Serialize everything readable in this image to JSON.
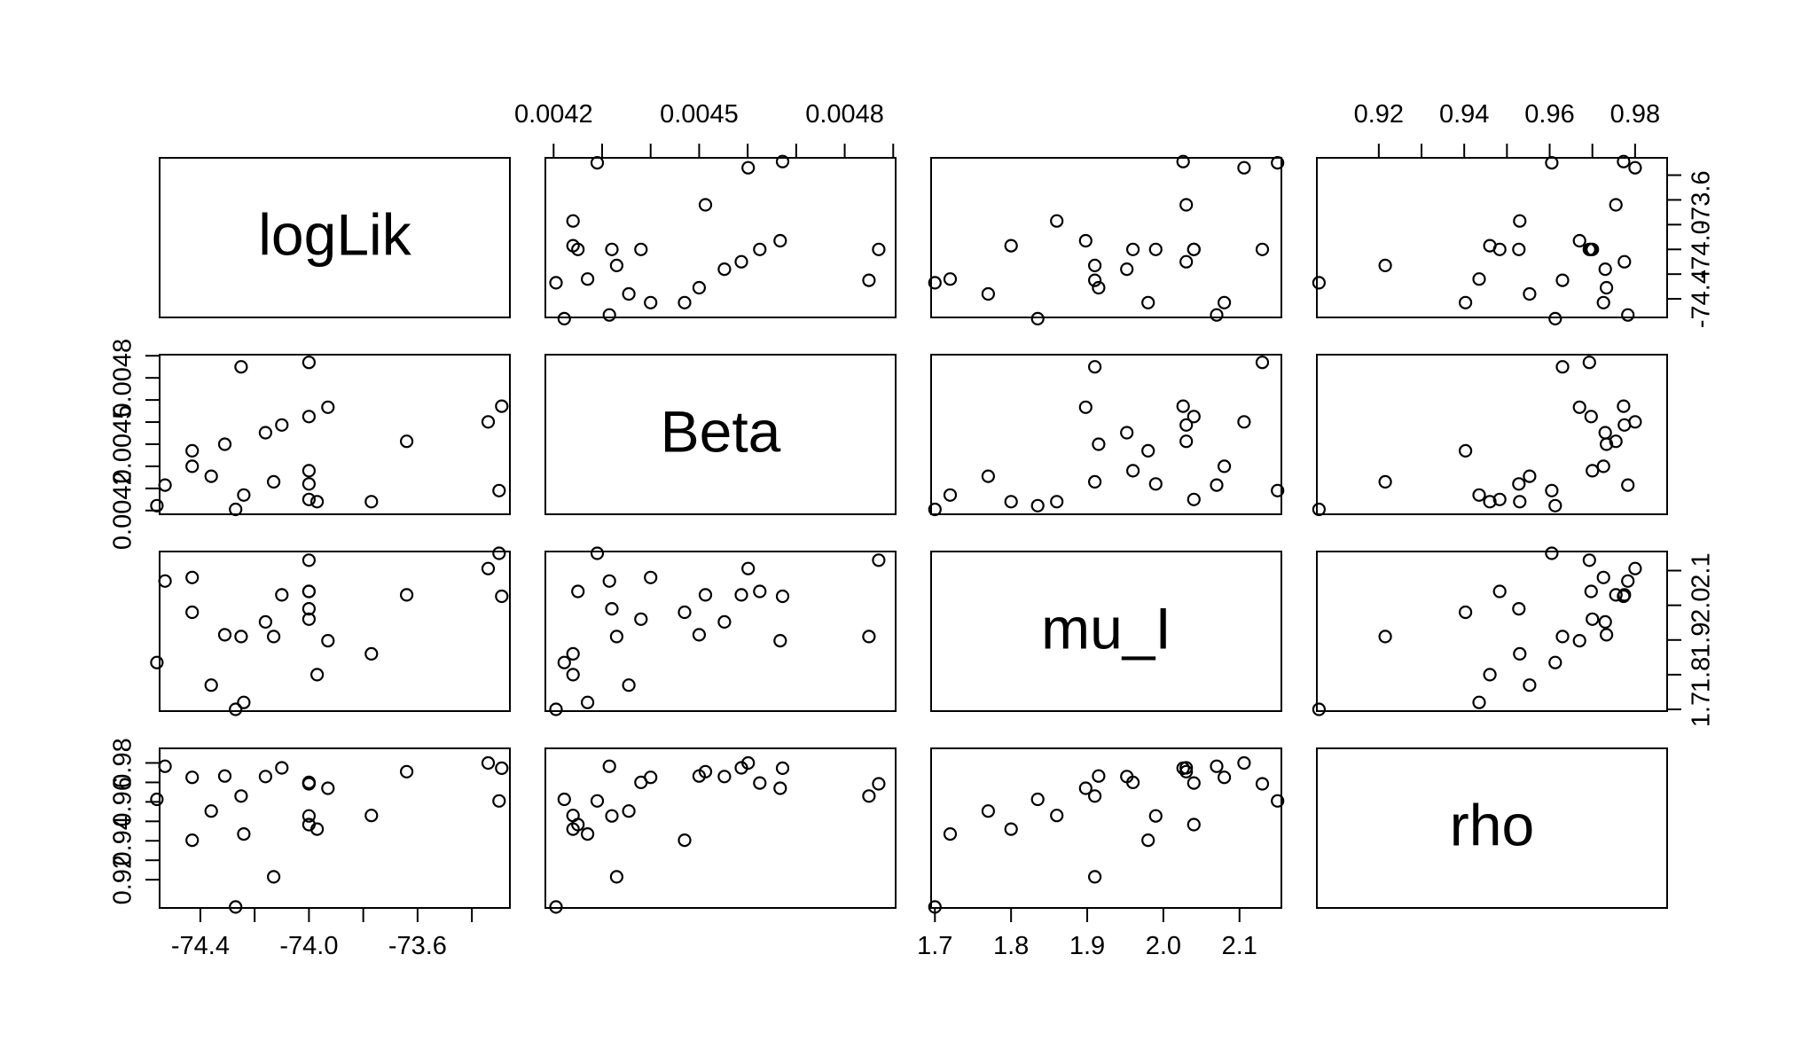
{
  "chart_data": {
    "type": "scatter",
    "layout": "pairs",
    "title": "",
    "variables": [
      "logLik",
      "Beta",
      "mu_I",
      "rho"
    ],
    "axes": {
      "logLik": {
        "range": [
          -74.55,
          -73.26
        ],
        "ticks": [
          -74.4,
          -74.2,
          -74.0,
          -73.8,
          -73.6,
          -73.4
        ],
        "tick_labels": [
          "-74.4",
          "",
          "-74.0",
          "",
          "-73.6",
          ""
        ]
      },
      "Beta": {
        "range": [
          0.004183,
          0.004905
        ],
        "ticks": [
          0.0042,
          0.0043,
          0.0044,
          0.0045,
          0.0046,
          0.0047,
          0.0048,
          0.0049
        ],
        "tick_labels": [
          "0.0042",
          "",
          "",
          "0.0045",
          "",
          "",
          "0.0048",
          ""
        ]
      },
      "mu_I": {
        "range": [
          1.695,
          2.155
        ],
        "ticks": [
          1.7,
          1.8,
          1.9,
          2.0,
          2.1
        ],
        "tick_labels": [
          "1.7",
          "1.8",
          "1.9",
          "2.0",
          "2.1"
        ]
      },
      "rho": {
        "range": [
          0.9055,
          0.9875
        ],
        "ticks": [
          0.92,
          0.93,
          0.94,
          0.95,
          0.96,
          0.97,
          0.98
        ],
        "tick_labels": [
          "0.92",
          "",
          "0.94",
          "",
          "0.96",
          "",
          "0.98"
        ]
      }
    },
    "points": [
      {
        "logLik": -73.93,
        "Beta": 0.004667,
        "mu_I": 1.898,
        "rho": 0.967
      },
      {
        "logLik": -74.1,
        "Beta": 0.004587,
        "mu_I": 2.03,
        "rho": 0.9775
      },
      {
        "logLik": -74.0,
        "Beta": 0.00487,
        "mu_I": 2.13,
        "rho": 0.9693
      },
      {
        "logLik": -74.16,
        "Beta": 0.004552,
        "mu_I": 1.952,
        "rho": 0.973
      },
      {
        "logLik": -73.29,
        "Beta": 0.004672,
        "mu_I": 2.026,
        "rho": 0.9773
      },
      {
        "logLik": -73.34,
        "Beta": 0.004601,
        "mu_I": 2.106,
        "rho": 0.98
      },
      {
        "logLik": -74.43,
        "Beta": 0.0044,
        "mu_I": 2.08,
        "rho": 0.9726
      },
      {
        "logLik": -74.0,
        "Beta": 0.00432,
        "mu_I": 1.99,
        "rho": 0.9528
      },
      {
        "logLik": -74.0,
        "Beta": 0.004625,
        "mu_I": 2.04,
        "rho": 0.9697
      },
      {
        "logLik": -74.25,
        "Beta": 0.00485,
        "mu_I": 1.91,
        "rho": 0.963
      },
      {
        "logLik": -74.36,
        "Beta": 0.004355,
        "mu_I": 1.77,
        "rho": 0.9553
      },
      {
        "logLik": -74.31,
        "Beta": 0.0045,
        "mu_I": 1.915,
        "rho": 0.9733
      },
      {
        "logLik": -74.53,
        "Beta": 0.004315,
        "mu_I": 2.07,
        "rho": 0.9783
      },
      {
        "logLik": -74.24,
        "Beta": 0.00427,
        "mu_I": 1.72,
        "rho": 0.9435
      },
      {
        "logLik": -73.64,
        "Beta": 0.004513,
        "mu_I": 2.03,
        "rho": 0.9755
      },
      {
        "logLik": -74.0,
        "Beta": 0.00438,
        "mu_I": 1.96,
        "rho": 0.97
      },
      {
        "logLik": -73.77,
        "Beta": 0.00424,
        "mu_I": 1.86,
        "rho": 0.953
      },
      {
        "logLik": -73.3,
        "Beta": 0.00429,
        "mu_I": 2.15,
        "rho": 0.9605
      },
      {
        "logLik": -74.13,
        "Beta": 0.00433,
        "mu_I": 1.91,
        "rho": 0.9215
      },
      {
        "logLik": -73.97,
        "Beta": 0.00424,
        "mu_I": 1.8,
        "rho": 0.946
      },
      {
        "logLik": -74.0,
        "Beta": 0.00425,
        "mu_I": 2.04,
        "rho": 0.9483
      },
      {
        "logLik": -74.43,
        "Beta": 0.00447,
        "mu_I": 1.98,
        "rho": 0.9403
      },
      {
        "logLik": -74.56,
        "Beta": 0.004222,
        "mu_I": 1.835,
        "rho": 0.9613
      },
      {
        "logLik": -74.27,
        "Beta": 0.004205,
        "mu_I": 1.7,
        "rho": 0.906
      }
    ]
  }
}
